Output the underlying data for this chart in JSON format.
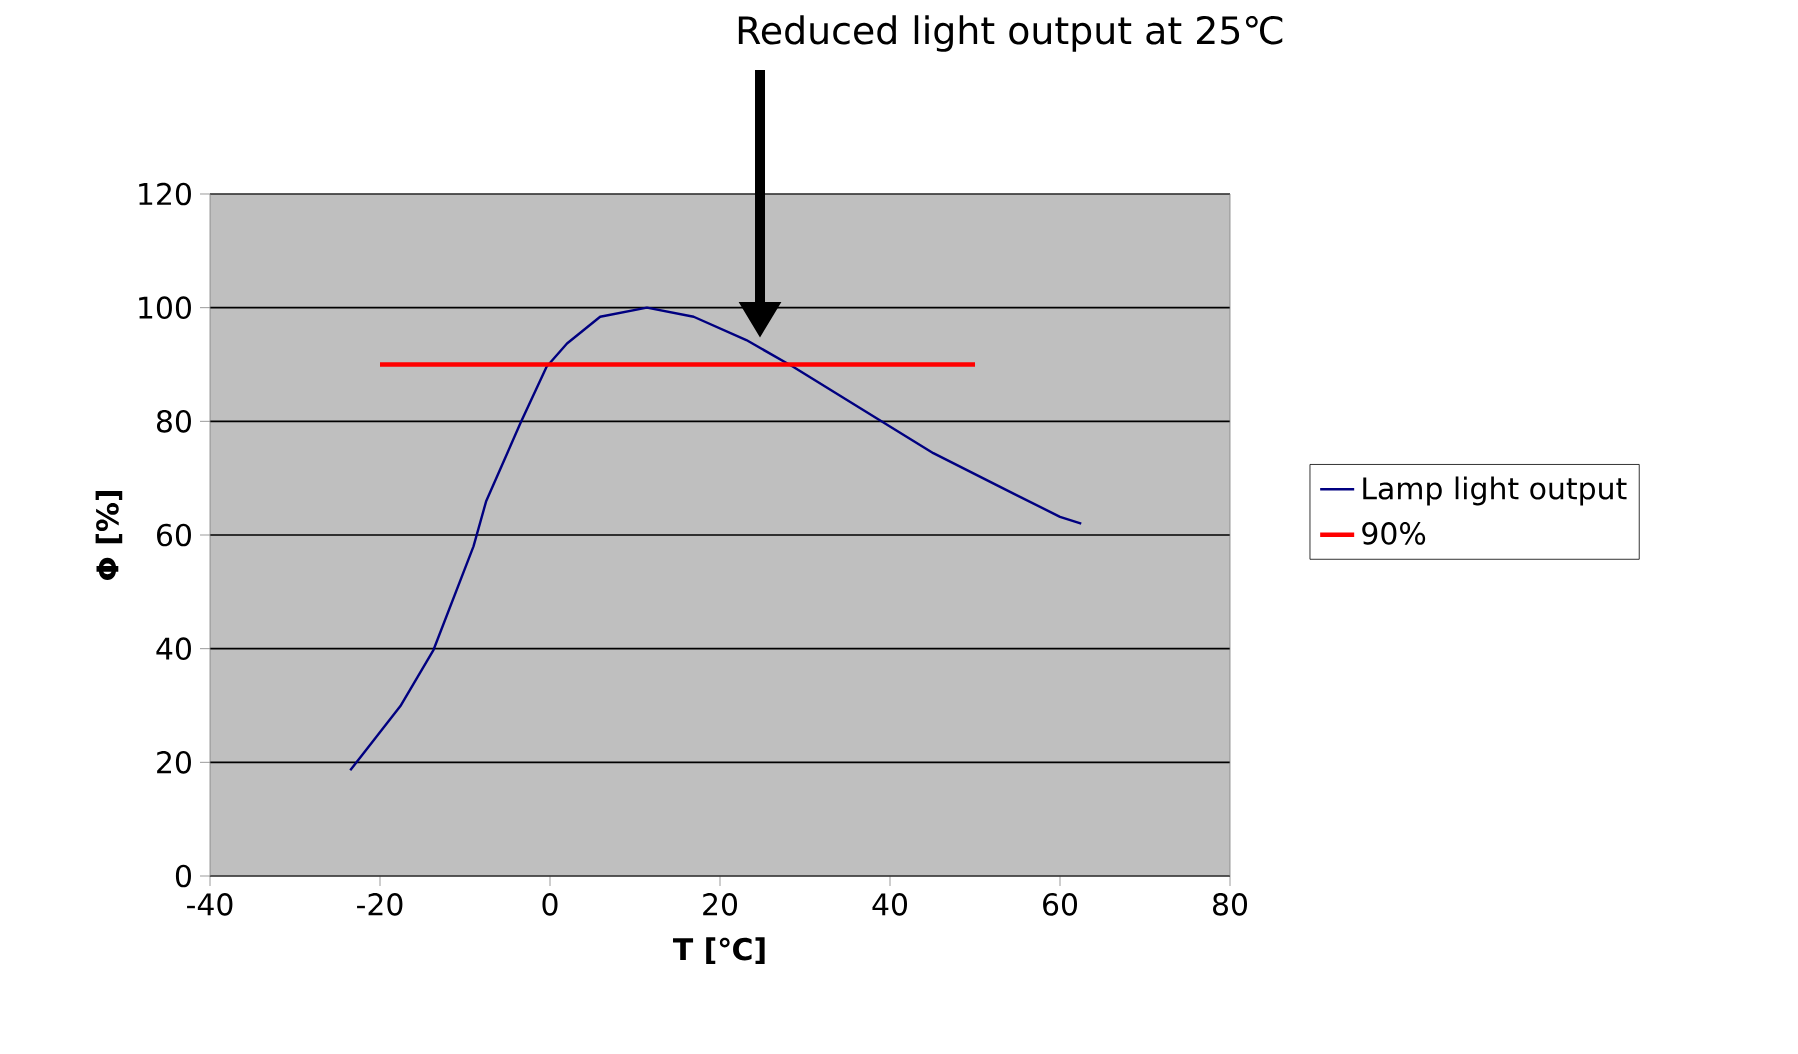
{
  "chart_data": {
    "type": "line",
    "xlabel": "T [℃]",
    "ylabel": "Φ [%]",
    "annotations": [
      "Reduced light output at 25℃"
    ],
    "xlim": [
      -40,
      80
    ],
    "xticks": [
      -40,
      -20,
      0,
      20,
      40,
      60,
      80
    ],
    "ylim": [
      0,
      120
    ],
    "yticks": [
      0,
      20,
      40,
      60,
      80,
      100,
      120
    ],
    "grid": "y",
    "legend": "right",
    "marker": "none",
    "series": [
      {
        "name": "Lamp light output",
        "color": "#000080",
        "x": [
          -23.5,
          -17.6,
          -13.7,
          -9.0,
          -7.5,
          -3.5,
          -0.4,
          2.0,
          5.9,
          11.4,
          16.9,
          23.1,
          28.6,
          38.8,
          45.1,
          52.9,
          60.0,
          62.5
        ],
        "values": [
          18.6,
          29.9,
          39.8,
          58,
          66,
          79.6,
          89.6,
          93.7,
          98.4,
          100,
          98.4,
          94.3,
          89.6,
          80.2,
          74.4,
          68.5,
          63.2,
          62.0
        ]
      },
      {
        "name": "90%",
        "color": "#ff0000",
        "x": [
          -20,
          50
        ],
        "values": [
          90,
          90
        ]
      }
    ]
  }
}
